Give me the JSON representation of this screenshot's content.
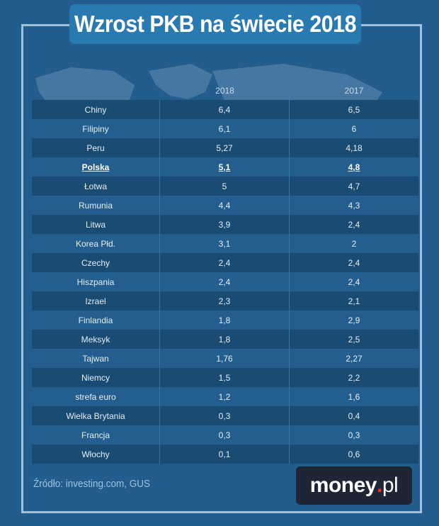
{
  "title": "Wzrost PKB na świecie 2018",
  "source": "Źródło: investing.com, GUS",
  "logo": {
    "main": "money",
    "dot": ".",
    "suffix": "pl"
  },
  "colors": {
    "background": "#225d8e",
    "title_box": "#2a7ab2",
    "row_dark": "#1a4b72",
    "row_light": "#235e8e",
    "logo_dot": "#e8332a"
  },
  "chart_data": {
    "type": "table",
    "columns": [
      "2018",
      "2017"
    ],
    "highlight": "Polska",
    "rows": [
      {
        "country": "Chiny",
        "y2018": "6,4",
        "y2017": "6,5"
      },
      {
        "country": "Filipiny",
        "y2018": "6,1",
        "y2017": "6"
      },
      {
        "country": "Peru",
        "y2018": "5,27",
        "y2017": "4,18"
      },
      {
        "country": "Polska",
        "y2018": "5,1",
        "y2017": "4,8"
      },
      {
        "country": "Łotwa",
        "y2018": "5",
        "y2017": "4,7"
      },
      {
        "country": "Rumunia",
        "y2018": "4,4",
        "y2017": "4,3"
      },
      {
        "country": "Litwa",
        "y2018": "3,9",
        "y2017": "2,4"
      },
      {
        "country": "Korea Płd.",
        "y2018": "3,1",
        "y2017": "2"
      },
      {
        "country": "Czechy",
        "y2018": "2,4",
        "y2017": "2,4"
      },
      {
        "country": "Hiszpania",
        "y2018": "2,4",
        "y2017": "2,4"
      },
      {
        "country": "Izrael",
        "y2018": "2,3",
        "y2017": "2,1"
      },
      {
        "country": "Finlandia",
        "y2018": "1,8",
        "y2017": "2,9"
      },
      {
        "country": "Meksyk",
        "y2018": "1,8",
        "y2017": "2,5"
      },
      {
        "country": "Tajwan",
        "y2018": "1,76",
        "y2017": "2,27"
      },
      {
        "country": "Niemcy",
        "y2018": "1,5",
        "y2017": "2,2"
      },
      {
        "country": "strefa euro",
        "y2018": "1,2",
        "y2017": "1,6"
      },
      {
        "country": "Wielka Brytania",
        "y2018": "0,3",
        "y2017": "0,4"
      },
      {
        "country": "Francja",
        "y2018": "0,3",
        "y2017": "0,3"
      },
      {
        "country": "Włochy",
        "y2018": "0,1",
        "y2017": "0,6"
      }
    ]
  }
}
